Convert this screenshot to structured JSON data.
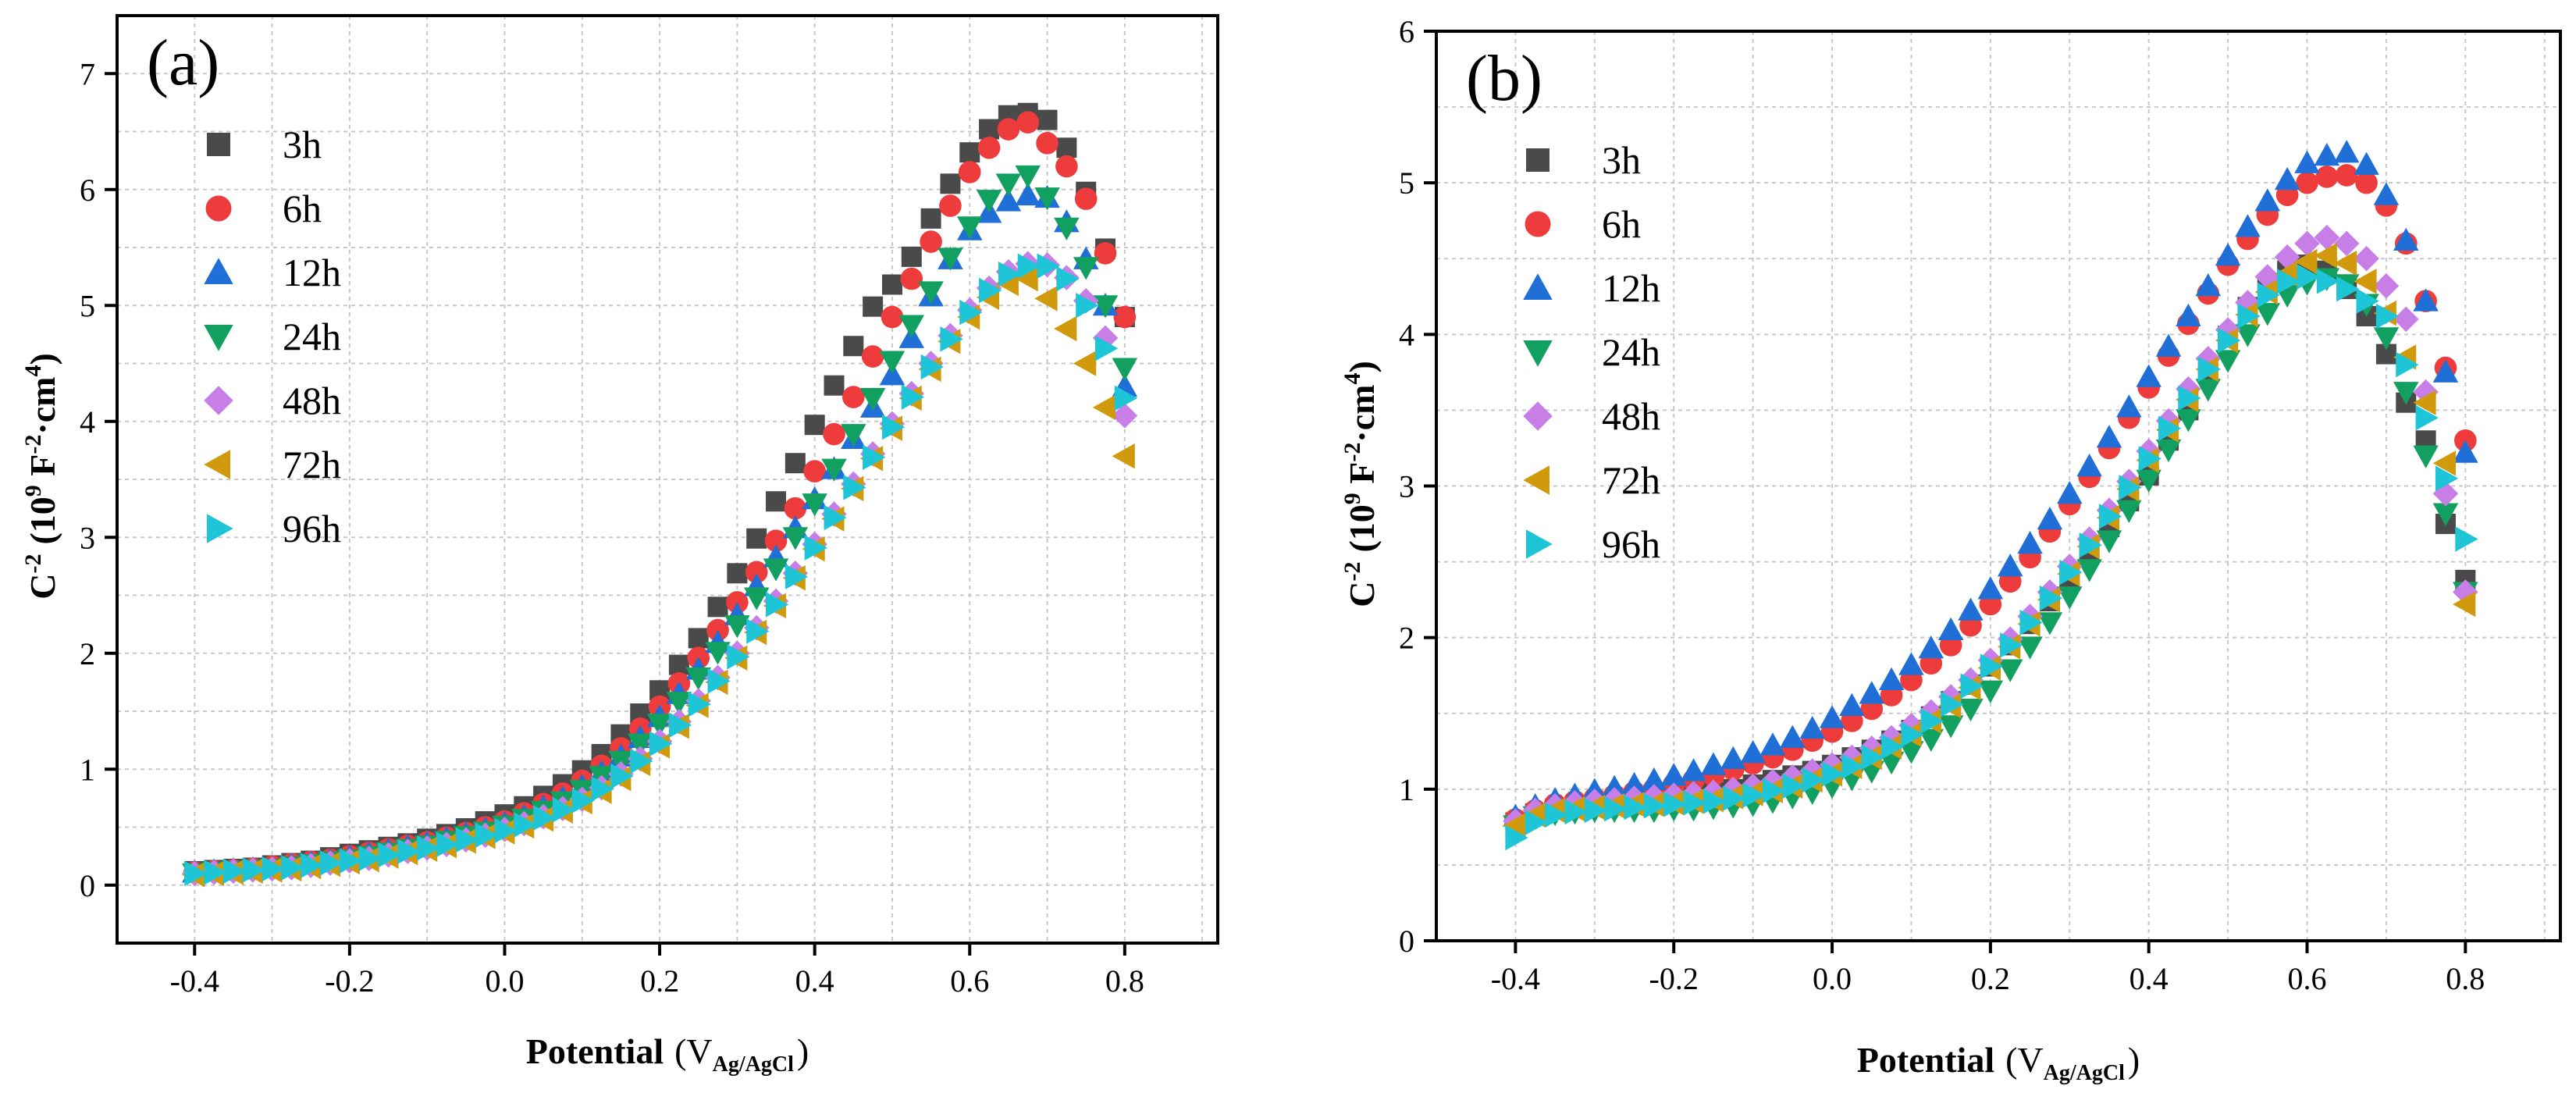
{
  "chart_data": [
    {
      "type": "scatter",
      "panel_label": "(a)",
      "xlabel_main": "Potential",
      "xlabel_sub": "Ag/AgCl",
      "ylabel_main": "C",
      "ylabel_exp": "-2",
      "ylabel_unit_open": "(10",
      "ylabel_unit_exp": "9",
      "ylabel_unit_mid": " F",
      "ylabel_unit_exp2": "-2",
      "ylabel_unit_end": "·cm",
      "ylabel_unit_exp3": "4",
      "ylabel_close": ")",
      "xlim": [
        -0.5,
        0.92
      ],
      "ylim": [
        -0.5,
        7.5
      ],
      "xticks": [
        -0.4,
        -0.2,
        0.0,
        0.2,
        0.4,
        0.6,
        0.8
      ],
      "xtick_labels": [
        "-0.4",
        "-0.2",
        "0.0",
        "0.2",
        "0.4",
        "0.6",
        "0.8"
      ],
      "yticks": [
        0,
        1,
        2,
        3,
        4,
        5,
        6,
        7
      ],
      "ytick_labels": [
        "0",
        "1",
        "2",
        "3",
        "4",
        "5",
        "6",
        "7"
      ],
      "grid": true,
      "legend_position": "top-left",
      "x": [
        -0.4,
        -0.375,
        -0.35,
        -0.325,
        -0.3,
        -0.275,
        -0.25,
        -0.225,
        -0.2,
        -0.175,
        -0.15,
        -0.125,
        -0.1,
        -0.075,
        -0.05,
        -0.025,
        0.0,
        0.025,
        0.05,
        0.075,
        0.1,
        0.125,
        0.15,
        0.175,
        0.2,
        0.225,
        0.25,
        0.275,
        0.3,
        0.325,
        0.35,
        0.375,
        0.4,
        0.425,
        0.45,
        0.475,
        0.5,
        0.525,
        0.55,
        0.575,
        0.6,
        0.625,
        0.65,
        0.675,
        0.7,
        0.725,
        0.75,
        0.775,
        0.8
      ],
      "series": [
        {
          "name": "3h",
          "values": [
            0.12,
            0.13,
            0.14,
            0.15,
            0.17,
            0.19,
            0.21,
            0.24,
            0.27,
            0.3,
            0.33,
            0.36,
            0.4,
            0.44,
            0.49,
            0.55,
            0.61,
            0.68,
            0.77,
            0.87,
            0.99,
            1.13,
            1.3,
            1.48,
            1.68,
            1.9,
            2.13,
            2.4,
            2.69,
            2.99,
            3.31,
            3.64,
            3.97,
            4.31,
            4.65,
            4.99,
            5.18,
            5.42,
            5.75,
            6.05,
            6.32,
            6.52,
            6.64,
            6.66,
            6.6,
            6.36,
            5.98,
            5.49,
            4.9
          ]
        },
        {
          "name": "6h",
          "values": [
            0.11,
            0.12,
            0.13,
            0.14,
            0.16,
            0.18,
            0.2,
            0.22,
            0.25,
            0.28,
            0.31,
            0.34,
            0.37,
            0.41,
            0.45,
            0.5,
            0.55,
            0.62,
            0.7,
            0.79,
            0.9,
            1.03,
            1.18,
            1.35,
            1.54,
            1.74,
            1.96,
            2.2,
            2.44,
            2.7,
            2.97,
            3.25,
            3.57,
            3.89,
            4.21,
            4.56,
            4.9,
            5.23,
            5.55,
            5.86,
            6.15,
            6.36,
            6.52,
            6.58,
            6.4,
            6.2,
            5.92,
            5.45,
            4.9
          ]
        },
        {
          "name": "12h",
          "values": [
            0.11,
            0.12,
            0.13,
            0.14,
            0.15,
            0.17,
            0.19,
            0.21,
            0.24,
            0.27,
            0.3,
            0.33,
            0.36,
            0.4,
            0.44,
            0.48,
            0.53,
            0.59,
            0.67,
            0.75,
            0.85,
            0.97,
            1.11,
            1.27,
            1.45,
            1.65,
            1.86,
            2.09,
            2.33,
            2.58,
            2.83,
            3.08,
            3.33,
            3.59,
            3.85,
            4.12,
            4.4,
            4.72,
            5.08,
            5.4,
            5.65,
            5.8,
            5.9,
            5.95,
            5.93,
            5.72,
            5.4,
            5.0,
            4.3
          ]
        },
        {
          "name": "24h",
          "values": [
            0.1,
            0.11,
            0.12,
            0.13,
            0.14,
            0.16,
            0.18,
            0.2,
            0.22,
            0.25,
            0.28,
            0.31,
            0.34,
            0.38,
            0.42,
            0.46,
            0.51,
            0.57,
            0.64,
            0.72,
            0.82,
            0.94,
            1.07,
            1.22,
            1.39,
            1.58,
            1.79,
            2.01,
            2.24,
            2.48,
            2.73,
            3.0,
            3.29,
            3.59,
            3.89,
            4.2,
            4.52,
            4.83,
            5.12,
            5.41,
            5.68,
            5.91,
            6.05,
            6.12,
            5.93,
            5.67,
            5.33,
            5.0,
            4.46
          ]
        },
        {
          "name": "48h",
          "values": [
            0.1,
            0.11,
            0.12,
            0.13,
            0.14,
            0.15,
            0.17,
            0.19,
            0.21,
            0.23,
            0.26,
            0.29,
            0.32,
            0.35,
            0.39,
            0.43,
            0.48,
            0.53,
            0.59,
            0.66,
            0.74,
            0.84,
            0.96,
            1.09,
            1.24,
            1.41,
            1.59,
            1.79,
            2.0,
            2.22,
            2.45,
            2.69,
            2.94,
            3.2,
            3.46,
            3.72,
            3.98,
            4.24,
            4.5,
            4.74,
            4.96,
            5.15,
            5.29,
            5.36,
            5.35,
            5.24,
            5.04,
            4.72,
            4.05
          ]
        },
        {
          "name": "72h",
          "values": [
            0.09,
            0.1,
            0.11,
            0.12,
            0.13,
            0.14,
            0.16,
            0.18,
            0.2,
            0.22,
            0.25,
            0.28,
            0.31,
            0.34,
            0.38,
            0.42,
            0.46,
            0.51,
            0.57,
            0.64,
            0.72,
            0.81,
            0.92,
            1.05,
            1.2,
            1.37,
            1.55,
            1.75,
            1.96,
            2.18,
            2.41,
            2.65,
            2.9,
            3.16,
            3.42,
            3.68,
            3.94,
            4.2,
            4.45,
            4.69,
            4.9,
            5.07,
            5.19,
            5.23,
            5.06,
            4.8,
            4.5,
            4.12,
            3.7
          ]
        },
        {
          "name": "96h",
          "values": [
            0.1,
            0.11,
            0.12,
            0.13,
            0.14,
            0.15,
            0.17,
            0.19,
            0.21,
            0.23,
            0.26,
            0.29,
            0.32,
            0.35,
            0.39,
            0.43,
            0.47,
            0.52,
            0.58,
            0.65,
            0.73,
            0.83,
            0.94,
            1.07,
            1.22,
            1.38,
            1.56,
            1.76,
            1.97,
            2.19,
            2.42,
            2.66,
            2.91,
            3.17,
            3.43,
            3.69,
            3.95,
            4.21,
            4.47,
            4.71,
            4.94,
            5.13,
            5.27,
            5.34,
            5.34,
            5.23,
            5.0,
            4.63,
            4.2
          ]
        }
      ]
    },
    {
      "type": "scatter",
      "panel_label": "(b)",
      "xlabel_main": "Potential",
      "xlabel_sub": "Ag/AgCl",
      "ylabel_main": "C",
      "ylabel_exp": "-2",
      "ylabel_unit_open": "(10",
      "ylabel_unit_exp": "9",
      "ylabel_unit_mid": " F",
      "ylabel_unit_exp2": "-2",
      "ylabel_unit_end": "·cm",
      "ylabel_unit_exp3": "4",
      "ylabel_close": ")",
      "xlim": [
        -0.5,
        0.92
      ],
      "ylim": [
        0,
        6
      ],
      "xticks": [
        -0.4,
        -0.2,
        0.0,
        0.2,
        0.4,
        0.6,
        0.8
      ],
      "xtick_labels": [
        "-0.4",
        "-0.2",
        "0.0",
        "0.2",
        "0.4",
        "0.6",
        "0.8"
      ],
      "yticks": [
        0,
        1,
        2,
        3,
        4,
        5,
        6
      ],
      "ytick_labels": [
        "0",
        "1",
        "2",
        "3",
        "4",
        "5",
        "6"
      ],
      "grid": true,
      "legend_position": "top-left",
      "x": [
        -0.4,
        -0.375,
        -0.35,
        -0.325,
        -0.3,
        -0.275,
        -0.25,
        -0.225,
        -0.2,
        -0.175,
        -0.15,
        -0.125,
        -0.1,
        -0.075,
        -0.05,
        -0.025,
        0.0,
        0.025,
        0.05,
        0.075,
        0.1,
        0.125,
        0.15,
        0.175,
        0.2,
        0.225,
        0.25,
        0.275,
        0.3,
        0.325,
        0.35,
        0.375,
        0.4,
        0.425,
        0.45,
        0.475,
        0.5,
        0.525,
        0.55,
        0.575,
        0.6,
        0.625,
        0.65,
        0.675,
        0.7,
        0.725,
        0.75,
        0.775,
        0.8
      ],
      "series": [
        {
          "name": "3h",
          "values": [
            0.78,
            0.84,
            0.87,
            0.89,
            0.9,
            0.91,
            0.92,
            0.93,
            0.94,
            0.96,
            0.98,
            1.0,
            1.03,
            1.06,
            1.09,
            1.12,
            1.16,
            1.21,
            1.26,
            1.32,
            1.39,
            1.48,
            1.58,
            1.69,
            1.81,
            1.95,
            2.09,
            2.24,
            2.4,
            2.56,
            2.73,
            2.9,
            3.07,
            3.3,
            3.5,
            3.75,
            3.99,
            4.18,
            4.33,
            4.42,
            4.46,
            4.42,
            4.3,
            4.12,
            3.87,
            3.55,
            3.3,
            2.75,
            2.38
          ]
        },
        {
          "name": "6h",
          "values": [
            0.8,
            0.86,
            0.9,
            0.92,
            0.94,
            0.96,
            0.98,
            1.0,
            1.03,
            1.06,
            1.09,
            1.13,
            1.17,
            1.21,
            1.26,
            1.32,
            1.38,
            1.45,
            1.53,
            1.62,
            1.72,
            1.83,
            1.95,
            2.08,
            2.22,
            2.37,
            2.53,
            2.7,
            2.88,
            3.06,
            3.25,
            3.45,
            3.65,
            3.86,
            4.07,
            4.27,
            4.46,
            4.63,
            4.79,
            4.92,
            5.0,
            5.04,
            5.05,
            5.0,
            4.85,
            4.6,
            4.22,
            3.78,
            3.3
          ]
        },
        {
          "name": "12h",
          "values": [
            0.82,
            0.89,
            0.93,
            0.96,
            0.99,
            1.01,
            1.03,
            1.06,
            1.09,
            1.12,
            1.16,
            1.2,
            1.24,
            1.29,
            1.34,
            1.4,
            1.47,
            1.55,
            1.63,
            1.72,
            1.82,
            1.93,
            2.05,
            2.18,
            2.32,
            2.47,
            2.62,
            2.78,
            2.95,
            3.13,
            3.32,
            3.52,
            3.72,
            3.92,
            4.12,
            4.32,
            4.52,
            4.71,
            4.88,
            5.02,
            5.13,
            5.18,
            5.2,
            5.12,
            4.92,
            4.62,
            4.22,
            3.75,
            3.22
          ]
        },
        {
          "name": "24h",
          "values": [
            0.76,
            0.82,
            0.84,
            0.85,
            0.86,
            0.86,
            0.86,
            0.86,
            0.87,
            0.87,
            0.88,
            0.89,
            0.9,
            0.92,
            0.95,
            0.98,
            1.02,
            1.07,
            1.12,
            1.18,
            1.25,
            1.33,
            1.42,
            1.53,
            1.65,
            1.79,
            1.94,
            2.1,
            2.27,
            2.45,
            2.64,
            2.84,
            3.04,
            3.24,
            3.44,
            3.64,
            3.83,
            4.0,
            4.14,
            4.26,
            4.34,
            4.37,
            4.33,
            4.2,
            3.98,
            3.62,
            3.2,
            2.82,
            2.3
          ]
        },
        {
          "name": "48h",
          "values": [
            0.79,
            0.86,
            0.89,
            0.91,
            0.92,
            0.93,
            0.94,
            0.95,
            0.96,
            0.97,
            0.98,
            1.0,
            1.02,
            1.05,
            1.08,
            1.12,
            1.16,
            1.21,
            1.27,
            1.34,
            1.42,
            1.51,
            1.61,
            1.72,
            1.85,
            1.99,
            2.14,
            2.3,
            2.47,
            2.65,
            2.84,
            3.03,
            3.23,
            3.43,
            3.64,
            3.84,
            4.03,
            4.21,
            4.38,
            4.51,
            4.6,
            4.64,
            4.6,
            4.5,
            4.32,
            4.1,
            3.62,
            2.95,
            2.3
          ]
        },
        {
          "name": "72h",
          "values": [
            0.76,
            0.83,
            0.86,
            0.87,
            0.88,
            0.89,
            0.9,
            0.9,
            0.91,
            0.92,
            0.93,
            0.95,
            0.97,
            0.99,
            1.02,
            1.06,
            1.1,
            1.15,
            1.21,
            1.28,
            1.36,
            1.45,
            1.55,
            1.67,
            1.8,
            1.94,
            2.09,
            2.25,
            2.42,
            2.6,
            2.79,
            2.98,
            3.17,
            3.37,
            3.57,
            3.77,
            3.96,
            4.13,
            4.28,
            4.4,
            4.48,
            4.52,
            4.47,
            4.35,
            4.14,
            3.85,
            3.55,
            3.15,
            2.22
          ]
        },
        {
          "name": "96h",
          "values": [
            0.68,
            0.78,
            0.83,
            0.85,
            0.86,
            0.87,
            0.88,
            0.89,
            0.9,
            0.91,
            0.92,
            0.94,
            0.96,
            0.99,
            1.02,
            1.06,
            1.1,
            1.15,
            1.21,
            1.28,
            1.36,
            1.45,
            1.56,
            1.68,
            1.81,
            1.95,
            2.1,
            2.26,
            2.43,
            2.61,
            2.8,
            2.99,
            3.18,
            3.38,
            3.58,
            3.77,
            3.96,
            4.12,
            4.26,
            4.35,
            4.38,
            4.35,
            4.3,
            4.22,
            4.12,
            3.8,
            3.45,
            3.05,
            2.65
          ]
        }
      ]
    }
  ],
  "series_styles": [
    {
      "name": "3h",
      "shape": "square",
      "color": "#4a4a4a"
    },
    {
      "name": "6h",
      "shape": "circle",
      "color": "#ee3b3b"
    },
    {
      "name": "12h",
      "shape": "triangle-up",
      "color": "#1f6fd6"
    },
    {
      "name": "24h",
      "shape": "triangle-down",
      "color": "#12a061"
    },
    {
      "name": "48h",
      "shape": "diamond",
      "color": "#c77ee6"
    },
    {
      "name": "72h",
      "shape": "triangle-left",
      "color": "#d19a0c"
    },
    {
      "name": "96h",
      "shape": "triangle-right",
      "color": "#1dc5d6"
    }
  ]
}
